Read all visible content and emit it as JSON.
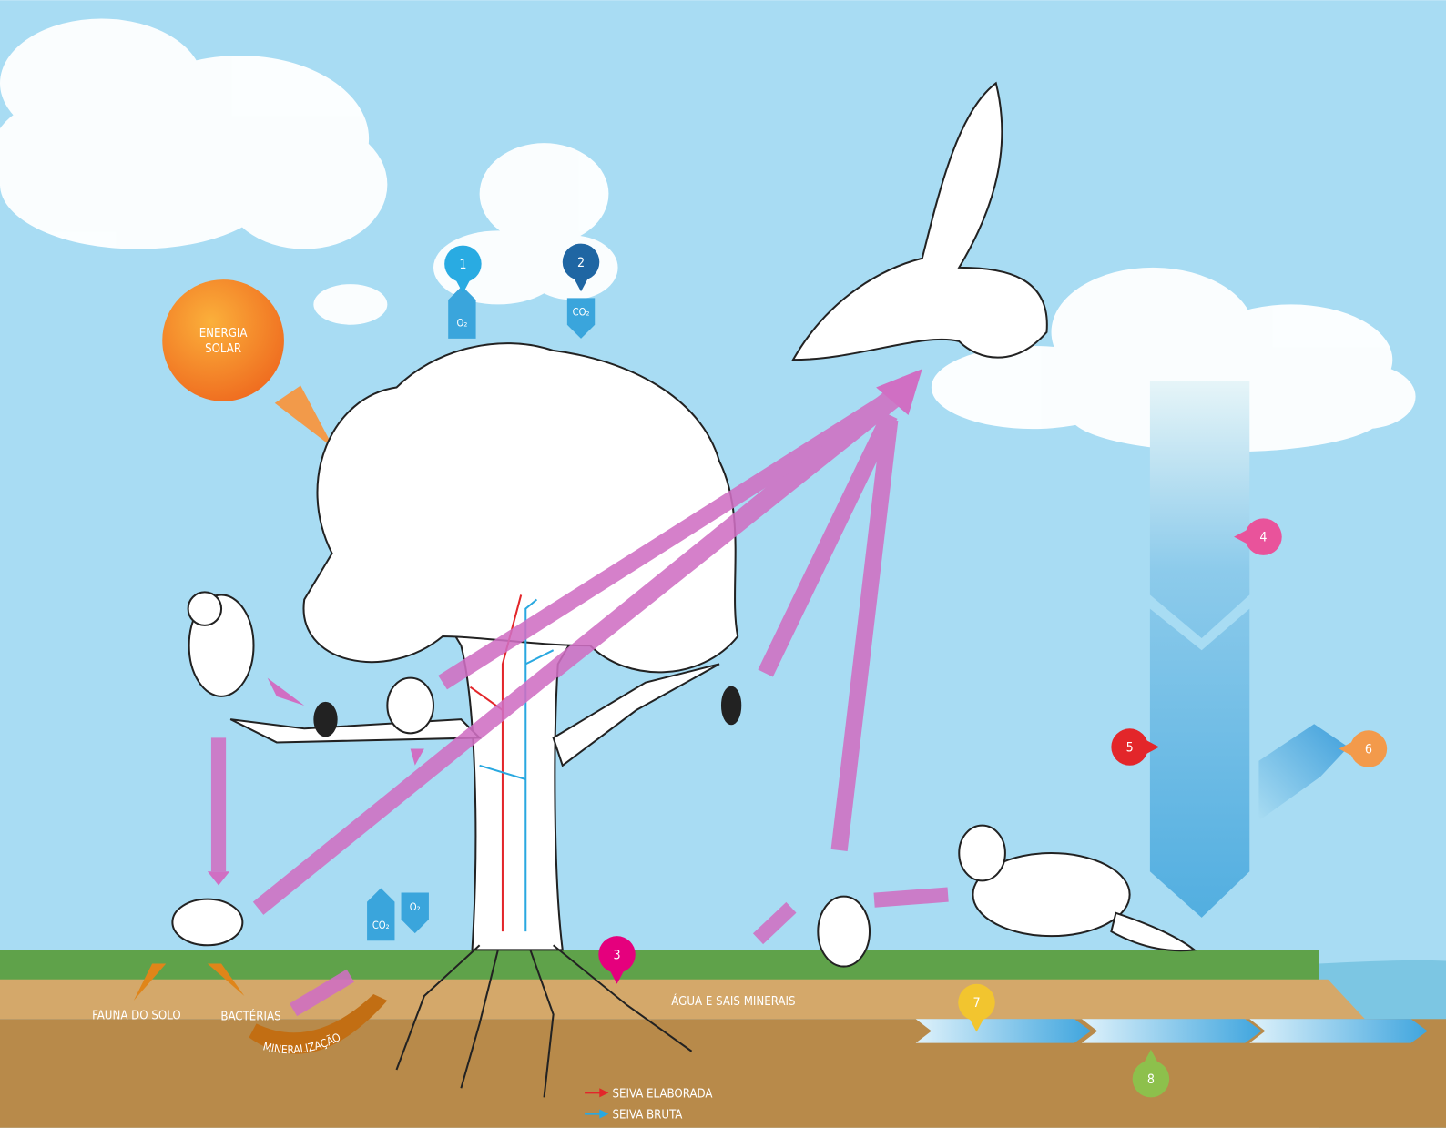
{
  "labels": {
    "sun": [
      "ENERGIA",
      "SOLAR"
    ],
    "soil_fauna": "FAUNA DO SOLO",
    "bacteria": "BACTÉRIAS",
    "mineralization": "MINERALIZAÇÃO",
    "water_minerals": "ÁGUA E SAIS MINERAIS"
  },
  "gases": [
    "O₂",
    "CO₂",
    "CO₂",
    "O₂"
  ],
  "markers": [
    {
      "number": "1",
      "color": "#29abe2"
    },
    {
      "number": "2",
      "color": "#1f66a3"
    },
    {
      "number": "3",
      "color": "#e5007d"
    },
    {
      "number": "4",
      "color": "#e9539b"
    },
    {
      "number": "5",
      "color": "#e3262a"
    },
    {
      "number": "6",
      "color": "#f39a4b"
    },
    {
      "number": "7",
      "color": "#f2c52f"
    },
    {
      "number": "8",
      "color": "#8dc04c"
    }
  ],
  "legend": [
    {
      "label": "SEIVA ELABORADA",
      "color": "#e3262a"
    },
    {
      "label": "SEIVA BRUTA",
      "color": "#29a8e0"
    }
  ]
}
